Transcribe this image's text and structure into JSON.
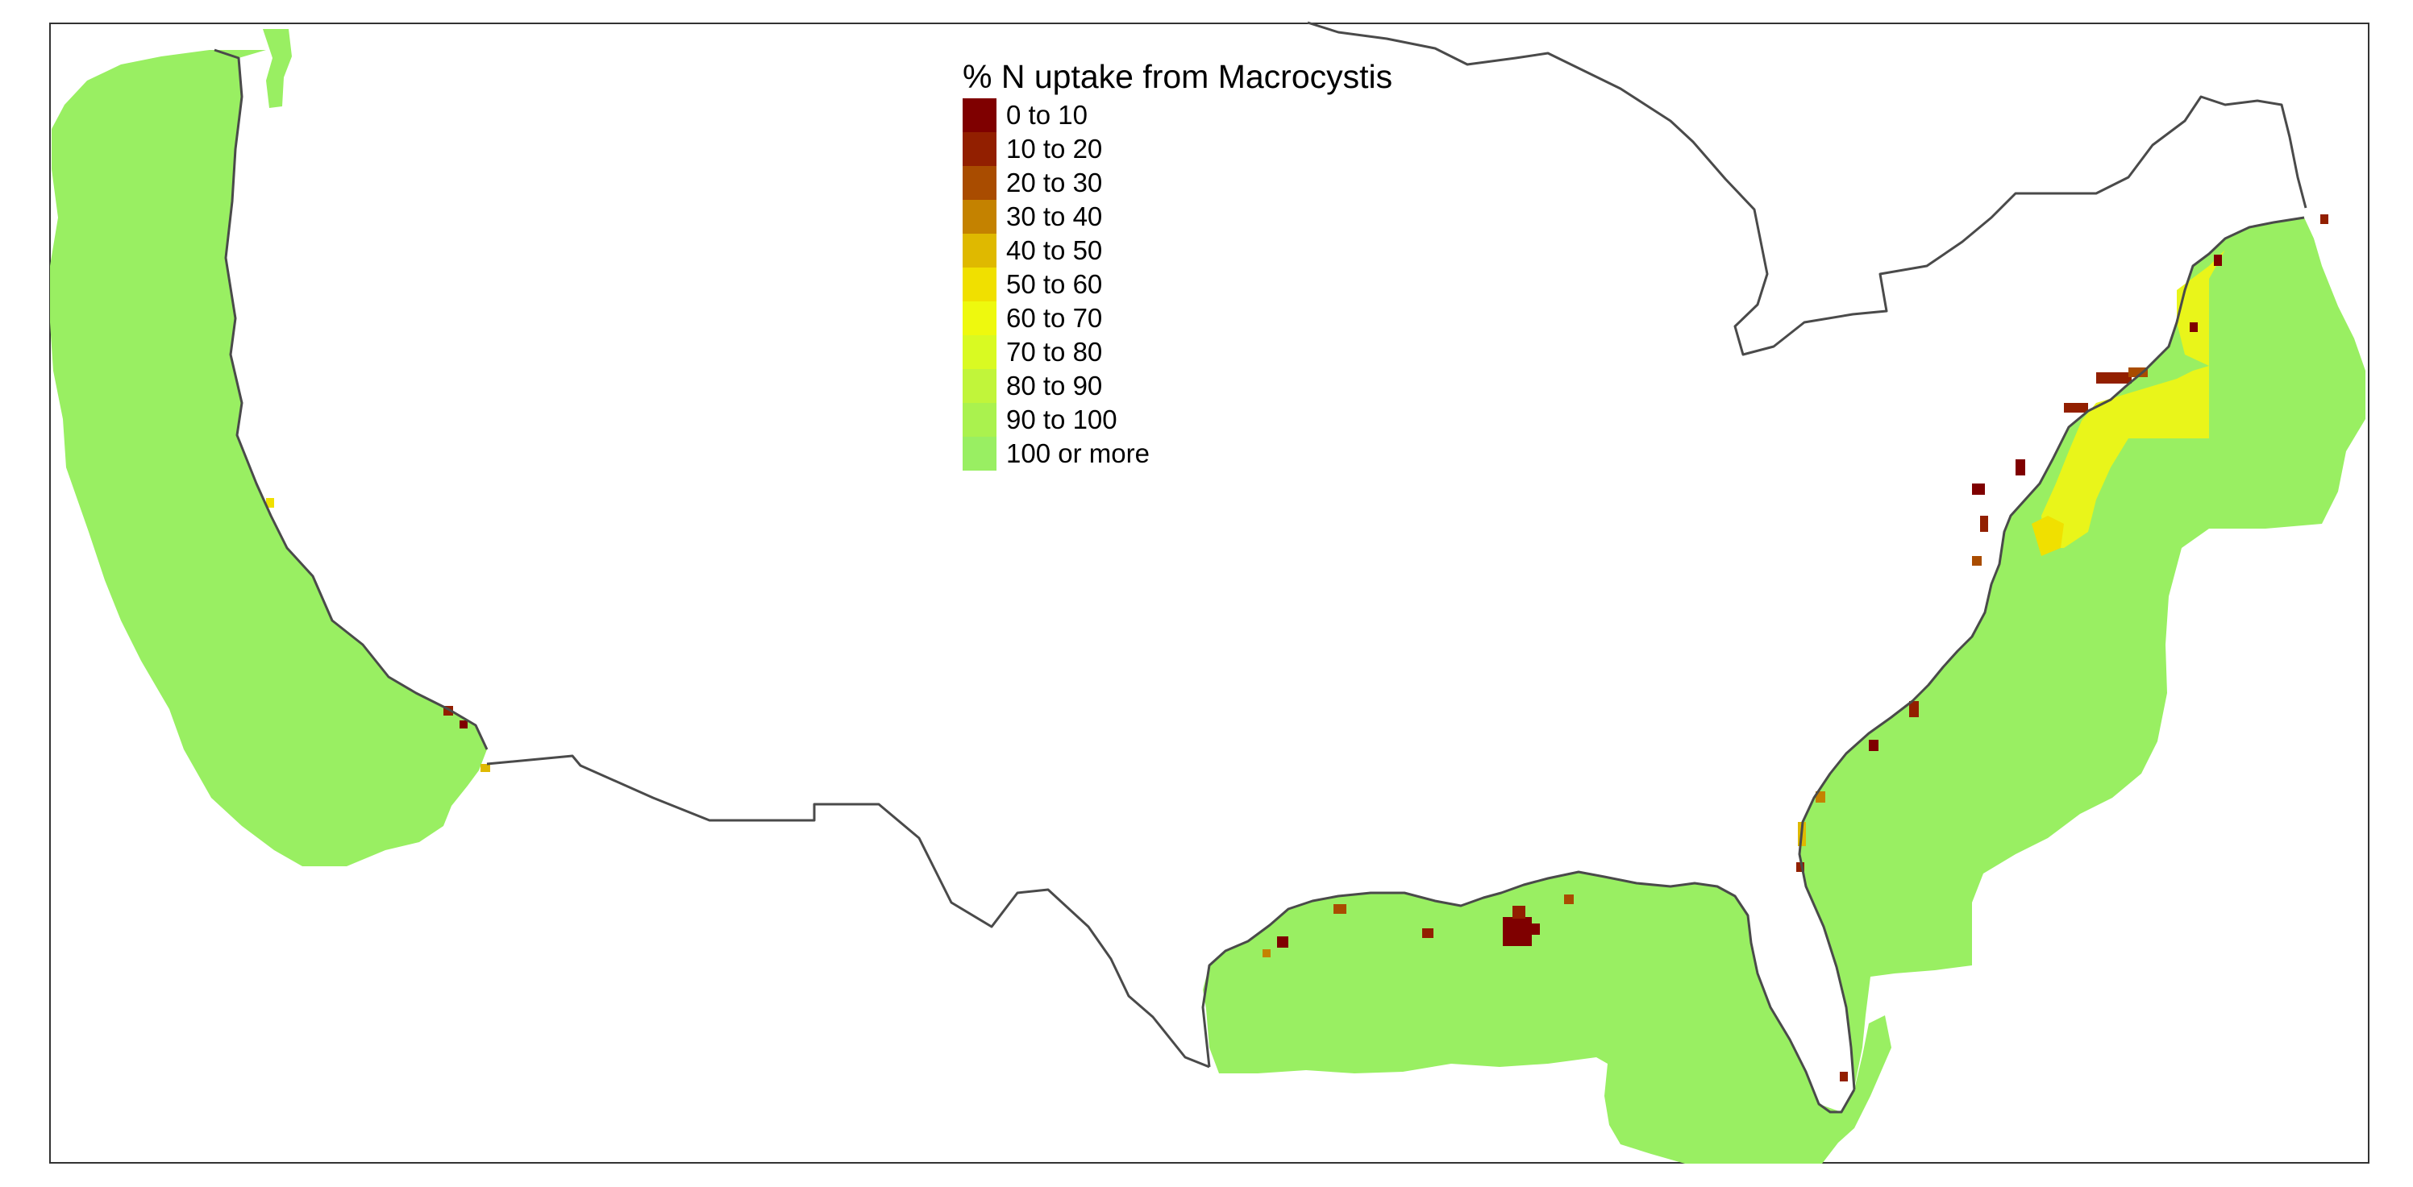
{
  "map": {
    "legend": {
      "title": "% N uptake from Macrocystis",
      "classes": [
        {
          "label": "0 to 10",
          "color": "#7f0000"
        },
        {
          "label": "10 to 20",
          "color": "#921f00"
        },
        {
          "label": "20 to 30",
          "color": "#a94c00"
        },
        {
          "label": "30 to 40",
          "color": "#c48200"
        },
        {
          "label": "40 to 50",
          "color": "#dfb900"
        },
        {
          "label": "50 to 60",
          "color": "#f0e000"
        },
        {
          "label": "60 to 70",
          "color": "#eef90e"
        },
        {
          "label": "70 to 80",
          "color": "#d9fa22"
        },
        {
          "label": "80 to 90",
          "color": "#c1f53a"
        },
        {
          "label": "90 to 100",
          "color": "#aaf24e"
        },
        {
          "label": "100 or more",
          "color": "#99ef62"
        }
      ]
    },
    "colors": {
      "coastline": "#4a4a4a",
      "ocean_raster_base": "#99ef62",
      "frame": "#333333"
    }
  }
}
